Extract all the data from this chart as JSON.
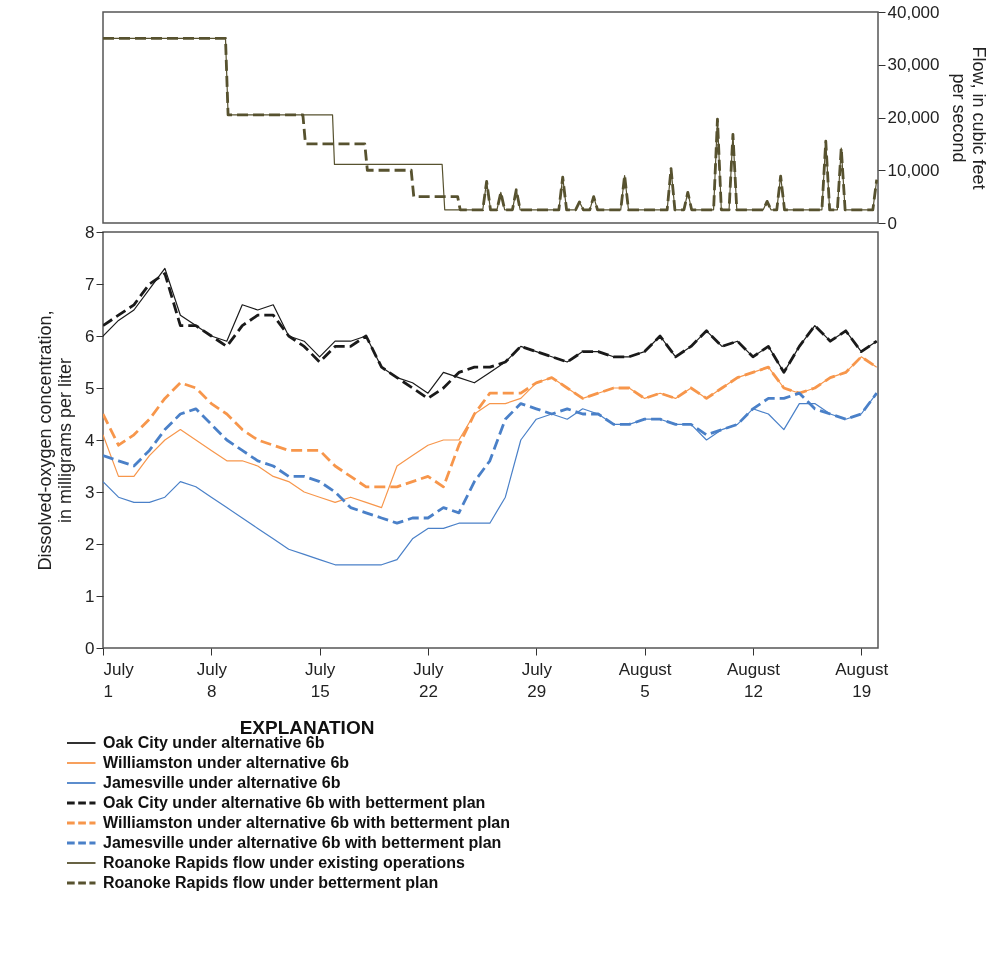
{
  "chart_data": [
    {
      "type": "line",
      "ylabel": "Flow, in cubic feet per second",
      "xlim": [
        "--07-01",
        "--08-20T02:00"
      ],
      "ylim": [
        0,
        40000
      ],
      "yticks": [
        0,
        {
          "value": 10000,
          "label": "10,000"
        },
        {
          "value": 20000,
          "label": "20,000"
        },
        {
          "value": 30000,
          "label": "30,000"
        },
        {
          "value": 40000,
          "label": "40,000"
        }
      ],
      "tick_labels": "y",
      "series": [
        {
          "name": "Roanoke Rapids flow under existing operations",
          "color": "#57522f",
          "line_style": "solid",
          "x": [
            "--07-01",
            "--07-08T22:00",
            "--07-09T02:00",
            "--07-15T20:00",
            "--07-15T23:00",
            "--07-22T22:00",
            "--07-23T02:00",
            "--07-25T13:00",
            "--07-25T19:00",
            "--07-26T01:00",
            "--07-26T11:00",
            "--07-26T17:00",
            "--07-26T23:00",
            "--07-27T11:00",
            "--07-27T17:00",
            "--07-27T23:00",
            "--07-30T11:00",
            "--07-30T17:00",
            "--07-30T23:00",
            "--07-31T13:00",
            "--07-31T19:00",
            "--08-01T01:00",
            "--08-01T11:00",
            "--08-01T17:00",
            "--08-01T23:00",
            "--08-03T11:00",
            "--08-03T17:00",
            "--08-03T23:00",
            "--08-06T11:00",
            "--08-06T17:00",
            "--08-06T23:00",
            "--08-07T13:00",
            "--08-07T19:00",
            "--08-08T01:00",
            "--08-09T11:00",
            "--08-09T17:00",
            "--08-09T23:00",
            "--08-10T11:00",
            "--08-10T17:00",
            "--08-10T23:00",
            "--08-12T16:00",
            "--08-12T22:00",
            "--08-13T04:00",
            "--08-13T13:00",
            "--08-13T19:00",
            "--08-14T01:00",
            "--08-16T11:00",
            "--08-16T17:00",
            "--08-16T23:00",
            "--08-17T11:00",
            "--08-17T17:00",
            "--08-17T23:00",
            "--08-19T18:00",
            "--08-20T00:00"
          ],
          "values": [
            35000,
            35000,
            20500,
            20500,
            11100,
            11100,
            2500,
            2500,
            7900,
            2500,
            2500,
            5800,
            2500,
            2500,
            6300,
            2500,
            2500,
            8700,
            2500,
            2500,
            4000,
            2500,
            2500,
            5000,
            2500,
            2500,
            9000,
            2500,
            2500,
            10300,
            2500,
            2500,
            5800,
            2500,
            2500,
            19700,
            2500,
            2500,
            16800,
            2500,
            2500,
            4100,
            2500,
            2500,
            8900,
            2500,
            2500,
            15500,
            2500,
            2500,
            14200,
            2500,
            2500,
            8200
          ]
        },
        {
          "name": "Roanoke Rapids flow under betterment plan",
          "color": "#57522f",
          "line_style": "dashed",
          "x": [
            "--07-01",
            "--07-08T22:00",
            "--07-09T02:00",
            "--07-13T22:00",
            "--07-14T02:00",
            "--07-17T22:00",
            "--07-18T02:00",
            "--07-20T22:00",
            "--07-21T02:00",
            "--07-23T22:00",
            "--07-24T02:00",
            "--07-25T13:00",
            "--07-25T19:00",
            "--07-26T01:00",
            "--07-26T11:00",
            "--07-26T17:00",
            "--07-26T23:00",
            "--07-27T11:00",
            "--07-27T17:00",
            "--07-27T23:00",
            "--07-30T11:00",
            "--07-30T17:00",
            "--07-30T23:00",
            "--07-31T13:00",
            "--07-31T19:00",
            "--08-01T01:00",
            "--08-01T11:00",
            "--08-01T17:00",
            "--08-01T23:00",
            "--08-03T11:00",
            "--08-03T17:00",
            "--08-03T23:00",
            "--08-06T11:00",
            "--08-06T17:00",
            "--08-06T23:00",
            "--08-07T13:00",
            "--08-07T19:00",
            "--08-08T01:00",
            "--08-09T11:00",
            "--08-09T17:00",
            "--08-09T23:00",
            "--08-10T11:00",
            "--08-10T17:00",
            "--08-10T23:00",
            "--08-12T16:00",
            "--08-12T22:00",
            "--08-13T04:00",
            "--08-13T13:00",
            "--08-13T19:00",
            "--08-14T01:00",
            "--08-16T11:00",
            "--08-16T17:00",
            "--08-16T23:00",
            "--08-17T11:00",
            "--08-17T17:00",
            "--08-17T23:00",
            "--08-19T18:00",
            "--08-20T00:00"
          ],
          "values": [
            35000,
            35000,
            20500,
            20500,
            15000,
            15000,
            10000,
            10000,
            5000,
            5000,
            2500,
            2500,
            7900,
            2500,
            2500,
            5800,
            2500,
            2500,
            6300,
            2500,
            2500,
            8700,
            2500,
            2500,
            4000,
            2500,
            2500,
            5000,
            2500,
            2500,
            9000,
            2500,
            2500,
            10300,
            2500,
            2500,
            5800,
            2500,
            2500,
            19700,
            2500,
            2500,
            16800,
            2500,
            2500,
            4100,
            2500,
            2500,
            8900,
            2500,
            2500,
            15500,
            2500,
            2500,
            14200,
            2500,
            2500,
            8200
          ]
        }
      ]
    },
    {
      "type": "line",
      "ylabel": "Dissolved-oxygen concentration, in milligrams per liter",
      "legend": "bottom",
      "legend_title": "EXPLANATION",
      "xlim": [
        "--07-01",
        "--08-20T02:00"
      ],
      "xticks": [
        {
          "value": "--07-01",
          "label": "July 1"
        },
        {
          "value": "--07-08",
          "label": "July 8"
        },
        {
          "value": "--07-15",
          "label": "July 15"
        },
        {
          "value": "--07-22",
          "label": "July 22"
        },
        {
          "value": "--07-29",
          "label": "July 29"
        },
        {
          "value": "--08-05",
          "label": "August 5"
        },
        {
          "value": "--08-12",
          "label": "August 12"
        },
        {
          "value": "--08-19",
          "label": "August 19"
        }
      ],
      "ylim": [
        0,
        8
      ],
      "yticks": [
        0,
        1,
        2,
        3,
        4,
        5,
        6,
        7,
        8
      ],
      "x": [
        "--07-01",
        "--07-02",
        "--07-03",
        "--07-04",
        "--07-05",
        "--07-06",
        "--07-07",
        "--07-08",
        "--07-09",
        "--07-10",
        "--07-11",
        "--07-12",
        "--07-13",
        "--07-14",
        "--07-15",
        "--07-16",
        "--07-17",
        "--07-18",
        "--07-19",
        "--07-20",
        "--07-21",
        "--07-22",
        "--07-23",
        "--07-24",
        "--07-25",
        "--07-26",
        "--07-27",
        "--07-28",
        "--07-29",
        "--07-30",
        "--07-31",
        "--08-01",
        "--08-02",
        "--08-03",
        "--08-04",
        "--08-05",
        "--08-06",
        "--08-07",
        "--08-08",
        "--08-09",
        "--08-10",
        "--08-11",
        "--08-12",
        "--08-13",
        "--08-14",
        "--08-15",
        "--08-16",
        "--08-17",
        "--08-18",
        "--08-19",
        "--08-20"
      ],
      "series": [
        {
          "name": "Oak City under alternative 6b",
          "color": "#1a1a1a",
          "line_style": "solid",
          "values": [
            6.0,
            6.3,
            6.5,
            6.9,
            7.3,
            6.4,
            6.2,
            6.0,
            5.9,
            6.6,
            6.5,
            6.6,
            6.0,
            5.9,
            5.6,
            5.9,
            5.9,
            6.0,
            5.4,
            5.2,
            5.1,
            4.9,
            5.3,
            5.2,
            5.1,
            5.3,
            5.5,
            5.8,
            5.7,
            5.6,
            5.5,
            5.7,
            5.7,
            5.6,
            5.6,
            5.7,
            6.0,
            5.6,
            5.8,
            6.1,
            5.8,
            5.9,
            5.6,
            5.8,
            5.3,
            5.8,
            6.2,
            5.9,
            6.1,
            5.7,
            5.9
          ]
        },
        {
          "name": "Williamston under alternative 6b",
          "color": "#f7964b",
          "line_style": "solid",
          "values": [
            4.1,
            3.3,
            3.3,
            3.7,
            4.0,
            4.2,
            4.0,
            3.8,
            3.6,
            3.6,
            3.5,
            3.3,
            3.2,
            3.0,
            2.9,
            2.8,
            2.9,
            2.8,
            2.7,
            3.5,
            3.7,
            3.9,
            4.0,
            4.0,
            4.5,
            4.7,
            4.7,
            4.8,
            5.1,
            5.2,
            5.0,
            4.8,
            4.9,
            5.0,
            5.0,
            4.8,
            4.9,
            4.8,
            5.0,
            4.8,
            5.0,
            5.2,
            5.3,
            5.4,
            5.0,
            4.9,
            5.0,
            5.2,
            5.3,
            5.6,
            5.4
          ]
        },
        {
          "name": "Jamesville under alternative 6b",
          "color": "#4a80c8",
          "line_style": "solid",
          "values": [
            3.2,
            2.9,
            2.8,
            2.8,
            2.9,
            3.2,
            3.1,
            2.9,
            2.7,
            2.5,
            2.3,
            2.1,
            1.9,
            1.8,
            1.7,
            1.6,
            1.6,
            1.6,
            1.6,
            1.7,
            2.1,
            2.3,
            2.3,
            2.4,
            2.4,
            2.4,
            2.9,
            4.0,
            4.4,
            4.5,
            4.4,
            4.6,
            4.5,
            4.3,
            4.3,
            4.4,
            4.4,
            4.3,
            4.3,
            4.0,
            4.2,
            4.3,
            4.6,
            4.5,
            4.2,
            4.7,
            4.7,
            4.5,
            4.4,
            4.5,
            4.9
          ]
        },
        {
          "name": "Oak City under alternative 6b with betterment plan",
          "color": "#1a1a1a",
          "line_style": "dashed",
          "values": [
            6.2,
            6.4,
            6.6,
            7.0,
            7.2,
            6.2,
            6.2,
            6.0,
            5.8,
            6.2,
            6.4,
            6.4,
            6.0,
            5.8,
            5.5,
            5.8,
            5.8,
            6.0,
            5.4,
            5.2,
            5.0,
            4.8,
            5.0,
            5.3,
            5.4,
            5.4,
            5.5,
            5.8,
            5.7,
            5.6,
            5.5,
            5.7,
            5.7,
            5.6,
            5.6,
            5.7,
            6.0,
            5.6,
            5.8,
            6.1,
            5.8,
            5.9,
            5.6,
            5.8,
            5.3,
            5.8,
            6.2,
            5.9,
            6.1,
            5.7,
            5.9
          ]
        },
        {
          "name": "Williamston under alternative 6b with betterment plan",
          "color": "#f7964b",
          "line_style": "dashed",
          "values": [
            4.5,
            3.9,
            4.1,
            4.4,
            4.8,
            5.1,
            5.0,
            4.7,
            4.5,
            4.2,
            4.0,
            3.9,
            3.8,
            3.8,
            3.8,
            3.5,
            3.3,
            3.1,
            3.1,
            3.1,
            3.2,
            3.3,
            3.1,
            3.9,
            4.5,
            4.9,
            4.9,
            4.9,
            5.1,
            5.2,
            5.0,
            4.8,
            4.9,
            5.0,
            5.0,
            4.8,
            4.9,
            4.8,
            5.0,
            4.8,
            5.0,
            5.2,
            5.3,
            5.4,
            5.0,
            4.9,
            5.0,
            5.2,
            5.3,
            5.6,
            5.4
          ]
        },
        {
          "name": "Jamesville under alternative 6b with betterment plan",
          "color": "#4a80c8",
          "line_style": "dashed",
          "values": [
            3.7,
            3.6,
            3.5,
            3.8,
            4.2,
            4.5,
            4.6,
            4.3,
            4.0,
            3.8,
            3.6,
            3.5,
            3.3,
            3.3,
            3.2,
            3.0,
            2.7,
            2.6,
            2.5,
            2.4,
            2.5,
            2.5,
            2.7,
            2.6,
            3.2,
            3.6,
            4.4,
            4.7,
            4.6,
            4.5,
            4.6,
            4.5,
            4.5,
            4.3,
            4.3,
            4.4,
            4.4,
            4.3,
            4.3,
            4.1,
            4.2,
            4.3,
            4.6,
            4.8,
            4.8,
            4.9,
            4.6,
            4.5,
            4.4,
            4.5,
            4.9
          ]
        }
      ]
    }
  ]
}
